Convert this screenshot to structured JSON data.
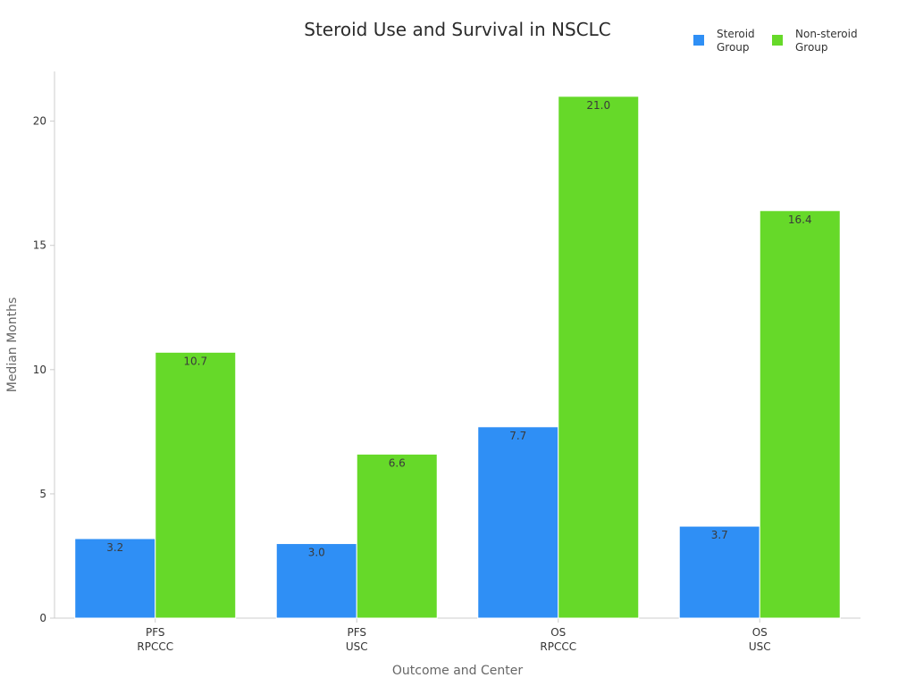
{
  "chart_data": {
    "type": "bar",
    "title": "Steroid Use and Survival in NSCLC",
    "xlabel": "Outcome and Center",
    "ylabel": "Median Months",
    "categories": [
      [
        "PFS",
        "RPCCC"
      ],
      [
        "PFS",
        "USC"
      ],
      [
        "OS",
        "RPCCC"
      ],
      [
        "OS",
        "USC"
      ]
    ],
    "series": [
      {
        "name_lines": [
          "Steroid",
          "Group"
        ],
        "color": "#2f8ff5",
        "values": [
          3.2,
          3.0,
          7.7,
          3.7
        ],
        "labels": [
          "3.2",
          "3.0",
          "7.7",
          "3.7"
        ]
      },
      {
        "name_lines": [
          "Non-steroid",
          "Group"
        ],
        "color": "#66d929",
        "values": [
          10.7,
          6.6,
          21.0,
          16.4
        ],
        "labels": [
          "10.7",
          "6.6",
          "21.0",
          "16.4"
        ]
      }
    ],
    "ylim": [
      0,
      22
    ],
    "yticks": [
      0,
      5,
      10,
      15,
      20
    ],
    "ytick_labels": [
      "0",
      "5",
      "10",
      "15",
      "20"
    ],
    "grid": false,
    "legend_position": "top-right"
  }
}
